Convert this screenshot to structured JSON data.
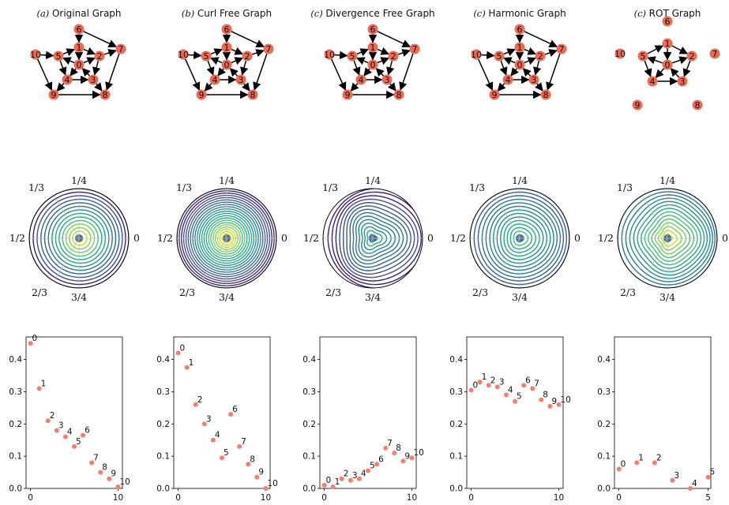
{
  "panels": [
    {
      "key": "orig",
      "prefix": "(a)",
      "title": "Original Graph",
      "nodes": [
        "0",
        "1",
        "2",
        "3",
        "4",
        "5",
        "6",
        "7",
        "8",
        "9",
        "10"
      ],
      "edges": [
        [
          1,
          0
        ],
        [
          1,
          2
        ],
        [
          6,
          1
        ],
        [
          6,
          7
        ],
        [
          10,
          5
        ],
        [
          10,
          9
        ],
        [
          5,
          1
        ],
        [
          0,
          5
        ],
        [
          0,
          2
        ],
        [
          0,
          4
        ],
        [
          3,
          0
        ],
        [
          2,
          3
        ],
        [
          2,
          7
        ],
        [
          4,
          3
        ],
        [
          4,
          9
        ],
        [
          5,
          4
        ],
        [
          3,
          8
        ],
        [
          7,
          8
        ],
        [
          9,
          8
        ],
        [
          4,
          9
        ]
      ],
      "polar_labels": {
        "top": "1/4",
        "left": "1/2",
        "right": "0",
        "upper_left": "1/3",
        "lower_left": "2/3",
        "bottom": "3/4"
      },
      "scatter": {
        "ylim": [
          0,
          0.47
        ],
        "xlim": [
          -0.5,
          10.5
        ],
        "xticks": [
          "0",
          "10"
        ],
        "yticks": [
          "0.0",
          "0.1",
          "0.2",
          "0.3",
          "0.4"
        ],
        "labels": [
          "0",
          "1",
          "2",
          "3",
          "4",
          "5",
          "6",
          "7",
          "8",
          "9",
          "10"
        ],
        "values": [
          0.45,
          0.31,
          0.21,
          0.18,
          0.16,
          0.13,
          0.165,
          0.08,
          0.05,
          0.03,
          0.005
        ]
      }
    },
    {
      "key": "curl",
      "prefix": "(b)",
      "title": "Curl Free Graph",
      "nodes": [
        "0",
        "1",
        "2",
        "3",
        "4",
        "5",
        "6",
        "7",
        "8",
        "9",
        "10"
      ],
      "edges": [
        [
          1,
          0
        ],
        [
          1,
          2
        ],
        [
          6,
          1
        ],
        [
          6,
          7
        ],
        [
          10,
          5
        ],
        [
          10,
          9
        ],
        [
          5,
          1
        ],
        [
          0,
          5
        ],
        [
          0,
          2
        ],
        [
          0,
          4
        ],
        [
          3,
          0
        ],
        [
          2,
          3
        ],
        [
          2,
          7
        ],
        [
          4,
          3
        ],
        [
          4,
          9
        ],
        [
          5,
          4
        ],
        [
          3,
          8
        ],
        [
          7,
          8
        ],
        [
          9,
          8
        ]
      ],
      "polar_labels": {
        "top": "1/4",
        "left": "1/2",
        "right": "0",
        "upper_left": "1/3",
        "lower_left": "2/3",
        "bottom": "3/4"
      },
      "scatter": {
        "ylim": [
          0,
          0.47
        ],
        "xlim": [
          -0.5,
          10.5
        ],
        "xticks": [
          "0",
          "10"
        ],
        "yticks": [
          "0.0",
          "0.1",
          "0.2",
          "0.3",
          "0.4"
        ],
        "labels": [
          "0",
          "1",
          "2",
          "3",
          "4",
          "5",
          "6",
          "7",
          "8",
          "9",
          "10"
        ],
        "values": [
          0.42,
          0.375,
          0.26,
          0.2,
          0.15,
          0.095,
          0.23,
          0.13,
          0.075,
          0.035,
          0.0
        ]
      }
    },
    {
      "key": "div",
      "prefix": "(c)",
      "title": "Divergence Free Graph",
      "nodes": [
        "0",
        "1",
        "2",
        "3",
        "4",
        "5",
        "6",
        "7",
        "8",
        "9",
        "10"
      ],
      "edges": [
        [
          1,
          0
        ],
        [
          1,
          2
        ],
        [
          6,
          1
        ],
        [
          6,
          7
        ],
        [
          10,
          5
        ],
        [
          10,
          9
        ],
        [
          5,
          1
        ],
        [
          0,
          5
        ],
        [
          0,
          2
        ],
        [
          0,
          4
        ],
        [
          3,
          0
        ],
        [
          2,
          3
        ],
        [
          2,
          7
        ],
        [
          4,
          3
        ],
        [
          4,
          9
        ],
        [
          5,
          4
        ],
        [
          3,
          8
        ],
        [
          7,
          8
        ],
        [
          9,
          8
        ]
      ],
      "polar_labels": {
        "top": "1/4",
        "left": "1/2",
        "right": "0",
        "upper_left": "1/3",
        "lower_left": "2/3",
        "bottom": "3/4"
      },
      "scatter": {
        "ylim": [
          0,
          0.47
        ],
        "xlim": [
          -0.5,
          10.5
        ],
        "xticks": [
          "0",
          "10"
        ],
        "yticks": [
          "0.0",
          "0.1",
          "0.2",
          "0.3",
          "0.4"
        ],
        "labels": [
          "0",
          "1",
          "2",
          "3",
          "4",
          "5",
          "6",
          "7",
          "8",
          "9",
          "10"
        ],
        "values": [
          0.01,
          0.005,
          0.03,
          0.025,
          0.03,
          0.055,
          0.075,
          0.125,
          0.11,
          0.085,
          0.095
        ]
      }
    },
    {
      "key": "harm",
      "prefix": "(c)",
      "title": "Harmonic Graph",
      "nodes": [
        "0",
        "1",
        "2",
        "3",
        "4",
        "5",
        "6",
        "7",
        "8",
        "9",
        "10"
      ],
      "edges": [
        [
          1,
          0
        ],
        [
          1,
          2
        ],
        [
          6,
          1
        ],
        [
          6,
          7
        ],
        [
          10,
          5
        ],
        [
          10,
          9
        ],
        [
          5,
          1
        ],
        [
          0,
          5
        ],
        [
          0,
          2
        ],
        [
          0,
          4
        ],
        [
          3,
          0
        ],
        [
          2,
          3
        ],
        [
          2,
          7
        ],
        [
          4,
          3
        ],
        [
          4,
          9
        ],
        [
          5,
          4
        ],
        [
          3,
          8
        ],
        [
          7,
          8
        ],
        [
          9,
          8
        ]
      ],
      "polar_labels": {
        "top": "1/4",
        "left": "1/2",
        "right": "0",
        "upper_left": "1/3",
        "lower_left": "2/3",
        "bottom": "3/4"
      },
      "scatter": {
        "ylim": [
          0,
          0.47
        ],
        "xlim": [
          -0.5,
          10.5
        ],
        "xticks": [
          "0",
          "10"
        ],
        "yticks": [
          "0.0",
          "0.1",
          "0.2",
          "0.3",
          "0.4"
        ],
        "labels": [
          "0",
          "1",
          "2",
          "3",
          "4",
          "5",
          "6",
          "7",
          "8",
          "9",
          "10"
        ],
        "values": [
          0.305,
          0.33,
          0.32,
          0.315,
          0.29,
          0.27,
          0.32,
          0.31,
          0.275,
          0.255,
          0.26
        ]
      }
    },
    {
      "key": "rot",
      "prefix": "(c)",
      "title": "ROT Graph",
      "nodes": [
        "0",
        "1",
        "2",
        "3",
        "4",
        "5",
        "6",
        "7",
        "8",
        "9",
        "10"
      ],
      "edges": [
        [
          1,
          0
        ],
        [
          1,
          2
        ],
        [
          5,
          1
        ],
        [
          0,
          5
        ],
        [
          0,
          2
        ],
        [
          0,
          4
        ],
        [
          3,
          0
        ],
        [
          2,
          3
        ],
        [
          4,
          3
        ],
        [
          5,
          4
        ]
      ],
      "polar_labels": {
        "top": "1/4",
        "left": "1/2",
        "right": "0",
        "upper_left": "1/3",
        "lower_left": "2/3",
        "bottom": "3/4"
      },
      "scatter": {
        "ylim": [
          0,
          0.47
        ],
        "xlim": [
          -0.25,
          5.15
        ],
        "xticks": [
          "0",
          "5"
        ],
        "yticks": [
          "0.0",
          "0.1",
          "0.2",
          "0.3",
          "0.4"
        ],
        "labels": [
          "0",
          "1",
          "2",
          "3",
          "4",
          "5"
        ],
        "values": [
          0.06,
          0.08,
          0.08,
          0.025,
          0.0,
          0.035
        ]
      }
    }
  ],
  "colors": {
    "node_fill": "#ef6a55",
    "edge": "#000000",
    "scatter_point": "#f08070",
    "contour_palette": [
      "#3b1f74",
      "#404c8c",
      "#355f8d",
      "#2a788e",
      "#21908d",
      "#22a884",
      "#43bf71",
      "#7ad151",
      "#bddf26",
      "#fde725"
    ]
  }
}
